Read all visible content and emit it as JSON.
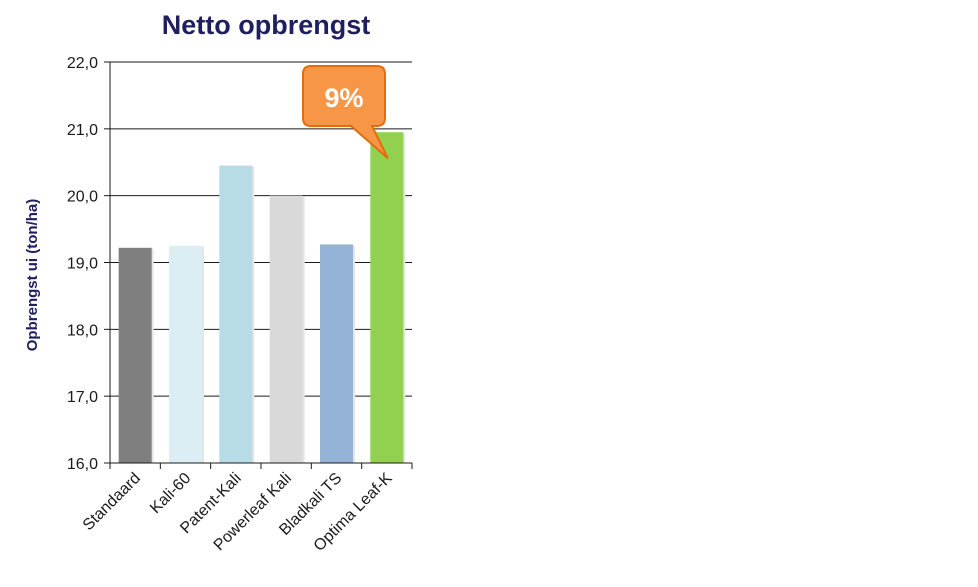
{
  "chart_data": {
    "type": "bar",
    "title": "Netto opbrengst",
    "ylabel": "Opbrengst ui (ton/ha)",
    "xlabel": "",
    "categories": [
      "Standaard",
      "Kali-60",
      "Patent-Kali",
      "Powerleaf Kali",
      "Bladkali TS",
      "Optima Leaf-K"
    ],
    "values": [
      19.22,
      19.25,
      20.45,
      20.0,
      19.27,
      20.95
    ],
    "colors": [
      "#7f7f7f",
      "#dcedf3",
      "#b8dce6",
      "#d9d9d9",
      "#95b3d7",
      "#92d050"
    ],
    "ylim": [
      16.0,
      22.0
    ],
    "yticks": [
      "16,0",
      "17,0",
      "18,0",
      "19,0",
      "20,0",
      "21,0",
      "22,0"
    ],
    "grid": true,
    "annotation": {
      "text": "9%",
      "target_category": "Optima Leaf-K",
      "fill": "#f79646",
      "stroke": "#e46c0a"
    },
    "title_color": "#1f1f5f"
  }
}
